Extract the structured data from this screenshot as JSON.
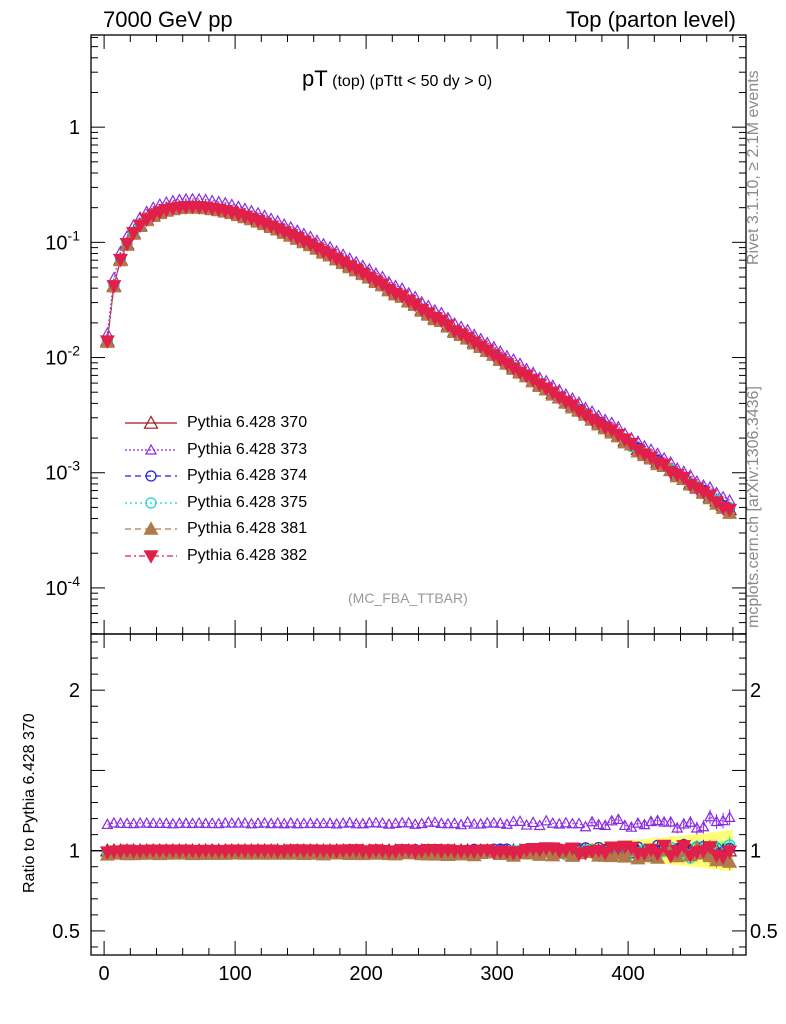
{
  "header": {
    "left": "7000 GeV pp",
    "right": "Top (parton level)"
  },
  "side": {
    "rivet": "Rivet 3.1.10, ≥ 2.1M events",
    "mcplots": "mcplots.cern.ch [arXiv:1306.3436]"
  },
  "annotation": "(MC_FBA_TTBAR)",
  "title": {
    "main": "pT",
    "sub1": "(top)",
    "sub2": "(pTtt < 50 dy > 0)"
  },
  "ratio_ylabel": "Ratio to Pythia 6.428 370",
  "legend": [
    {
      "label": "Pythia 6.428 370",
      "color": "#9b1c20",
      "marker": "triangle-up-open",
      "dash": ""
    },
    {
      "label": "Pythia 6.428 373",
      "color": "#8a2be2",
      "marker": "triangle-up-open-small",
      "dash": "2,2"
    },
    {
      "label": "Pythia 6.428 374",
      "color": "#2020e0",
      "marker": "circle-open",
      "dash": "6,4"
    },
    {
      "label": "Pythia 6.428 375",
      "color": "#18d8c8",
      "marker": "circle-open",
      "dash": "2,3"
    },
    {
      "label": "Pythia 6.428 381",
      "color": "#b07a4a",
      "marker": "triangle-up-filled",
      "dash": "6,4"
    },
    {
      "label": "Pythia 6.428 382",
      "color": "#e0204a",
      "marker": "triangle-down-filled",
      "dash": "6,3,2,3"
    }
  ],
  "chart_data": [
    {
      "type": "scatter",
      "panel": "main",
      "xlim": [
        -10,
        490
      ],
      "ylog": true,
      "ylim_log10": [
        -4.4,
        0.8
      ],
      "ytick_labels": [
        "1",
        "10^-1",
        "10^-2",
        "10^-3",
        "10^-4"
      ],
      "x": [
        2.5,
        7.5,
        12.5,
        17.5,
        22.5,
        27.5,
        32.5,
        37.5,
        42.5,
        47.5,
        52.5,
        57.5,
        62.5,
        67.5,
        72.5,
        77.5,
        82.5,
        87.5,
        92.5,
        97.5,
        102.5,
        107.5,
        112.5,
        117.5,
        122.5,
        127.5,
        132.5,
        137.5,
        142.5,
        147.5,
        152.5,
        157.5,
        162.5,
        167.5,
        172.5,
        177.5,
        182.5,
        187.5,
        192.5,
        197.5,
        202.5,
        207.5,
        212.5,
        217.5,
        222.5,
        227.5,
        232.5,
        237.5,
        242.5,
        247.5,
        252.5,
        257.5,
        262.5,
        267.5,
        272.5,
        277.5,
        282.5,
        287.5,
        292.5,
        297.5,
        302.5,
        307.5,
        312.5,
        317.5,
        322.5,
        327.5,
        332.5,
        337.5,
        342.5,
        347.5,
        352.5,
        357.5,
        362.5,
        367.5,
        372.5,
        377.5,
        382.5,
        387.5,
        392.5,
        397.5,
        402.5,
        407.5,
        412.5,
        417.5,
        422.5,
        427.5,
        432.5,
        437.5,
        442.5,
        447.5,
        452.5,
        457.5,
        462.5,
        467.5,
        472.5,
        477.5
      ],
      "series": [
        {
          "name": "Pythia 6.428 370",
          "values": [
            0.014,
            0.042,
            0.071,
            0.097,
            0.121,
            0.141,
            0.158,
            0.172,
            0.183,
            0.191,
            0.197,
            0.201,
            0.203,
            0.204,
            0.203,
            0.201,
            0.197,
            0.193,
            0.188,
            0.182,
            0.175,
            0.168,
            0.161,
            0.154,
            0.146,
            0.138,
            0.131,
            0.123,
            0.116,
            0.109,
            0.102,
            0.096,
            0.089,
            0.083,
            0.078,
            0.072,
            0.067,
            0.062,
            0.058,
            0.054,
            0.05,
            0.046,
            0.043,
            0.039,
            0.036,
            0.034,
            0.031,
            0.029,
            0.026,
            0.024,
            0.022,
            0.021,
            0.019,
            0.017,
            0.016,
            0.0148,
            0.0136,
            0.0125,
            0.0115,
            0.0106,
            0.0097,
            0.0089,
            0.0082,
            0.0075,
            0.0069,
            0.0063,
            0.0058,
            0.0053,
            0.0049,
            0.0045,
            0.0041,
            0.0038,
            0.0035,
            0.0032,
            0.0029,
            0.0027,
            0.0025,
            0.0023,
            0.0021,
            0.0019,
            0.00175,
            0.0016,
            0.00147,
            0.00135,
            0.00124,
            0.00114,
            0.00105,
            0.00096,
            0.00088,
            0.00081,
            0.00074,
            0.00068,
            0.00062,
            0.00057,
            0.00052,
            0.00048
          ]
        },
        {
          "name": "Pythia 6.428 373",
          "ratio": 1.17
        },
        {
          "name": "Pythia 6.428 374",
          "ratio": 1.0
        },
        {
          "name": "Pythia 6.428 375",
          "ratio": 0.99
        },
        {
          "name": "Pythia 6.428 381",
          "ratio": 0.98
        },
        {
          "name": "Pythia 6.428 382",
          "ratio": 1.0
        }
      ]
    },
    {
      "type": "scatter",
      "panel": "ratio",
      "ylabel": "Ratio to Pythia 6.428 370",
      "xlim": [
        -10,
        490
      ],
      "ylim": [
        0.35,
        2.35
      ],
      "xticks": [
        0,
        100,
        200,
        300,
        400
      ],
      "yticks": [
        0.5,
        1,
        2
      ],
      "reference_line": 1
    }
  ]
}
